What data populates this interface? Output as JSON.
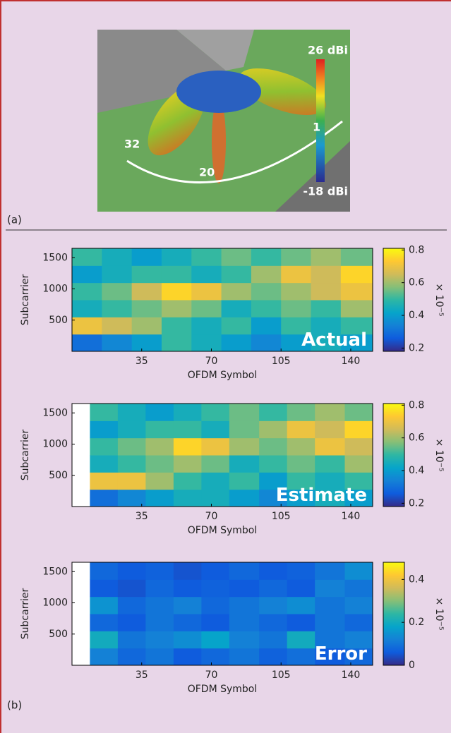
{
  "panel_a": {
    "label": "(a)",
    "scale_max": "26 dBi",
    "scale_min": "-18 dBi",
    "beam_first": "1",
    "beam_mid": "20",
    "beam_last": "32"
  },
  "panel_b": {
    "label": "(b)"
  },
  "chart_data": [
    {
      "type": "heatmap",
      "overlay": "Actual",
      "xlabel": "OFDM Symbol",
      "ylabel": "Subcarrier",
      "color_exponent": "× 10⁻⁵",
      "xlim": [
        0,
        151
      ],
      "ylim": [
        0,
        1650
      ],
      "xticks": [
        35,
        70,
        105,
        140
      ],
      "yticks": [
        500,
        1000,
        1500
      ],
      "clim": [
        0.18,
        0.81
      ],
      "cticks": [
        0.2,
        0.4,
        0.6,
        0.8
      ],
      "colormap": [
        "#352a87",
        "#0f5cdd",
        "#1481d6",
        "#06a4ca",
        "#2eb7a4",
        "#87bf77",
        "#d1bb59",
        "#fec832",
        "#f9fb0e"
      ],
      "xbins": [
        0,
        15,
        30,
        45,
        60,
        75,
        90,
        105,
        120,
        135,
        151
      ],
      "ybins": [
        0,
        275,
        550,
        825,
        1100,
        1375,
        1650
      ],
      "z": [
        [
          0.3,
          0.35,
          0.4,
          0.5,
          0.45,
          0.4,
          0.35,
          0.4,
          0.45,
          0.4
        ],
        [
          0.7,
          0.65,
          0.6,
          0.5,
          0.45,
          0.5,
          0.4,
          0.5,
          0.45,
          0.5
        ],
        [
          0.45,
          0.5,
          0.55,
          0.6,
          0.55,
          0.45,
          0.5,
          0.55,
          0.5,
          0.6
        ],
        [
          0.5,
          0.55,
          0.65,
          0.75,
          0.7,
          0.6,
          0.55,
          0.6,
          0.65,
          0.7
        ],
        [
          0.4,
          0.45,
          0.5,
          0.5,
          0.45,
          0.5,
          0.6,
          0.7,
          0.65,
          0.75
        ],
        [
          0.5,
          0.45,
          0.4,
          0.45,
          0.5,
          0.55,
          0.5,
          0.55,
          0.6,
          0.55
        ]
      ]
    },
    {
      "type": "heatmap",
      "overlay": "Estimate",
      "xlabel": "OFDM Symbol",
      "ylabel": "Subcarrier",
      "color_exponent": "× 10⁻⁵",
      "xlim": [
        0,
        151
      ],
      "ylim": [
        0,
        1650
      ],
      "xticks": [
        35,
        70,
        105,
        140
      ],
      "yticks": [
        500,
        1000,
        1500
      ],
      "clim": [
        0.18,
        0.81
      ],
      "cticks": [
        0.2,
        0.4,
        0.6,
        0.8
      ],
      "colormap": [
        "#352a87",
        "#0f5cdd",
        "#1481d6",
        "#06a4ca",
        "#2eb7a4",
        "#87bf77",
        "#d1bb59",
        "#fec832",
        "#f9fb0e"
      ],
      "xbins": [
        9,
        23,
        37,
        51,
        65,
        79,
        94,
        108,
        122,
        137,
        151
      ],
      "ybins": [
        0,
        275,
        550,
        825,
        1100,
        1375,
        1650
      ],
      "z": [
        [
          0.3,
          0.35,
          0.4,
          0.45,
          0.45,
          0.4,
          0.35,
          0.4,
          0.45,
          0.4
        ],
        [
          0.7,
          0.7,
          0.6,
          0.5,
          0.45,
          0.5,
          0.4,
          0.5,
          0.45,
          0.5
        ],
        [
          0.45,
          0.5,
          0.55,
          0.6,
          0.55,
          0.45,
          0.5,
          0.55,
          0.5,
          0.6
        ],
        [
          0.5,
          0.55,
          0.6,
          0.75,
          0.7,
          0.6,
          0.55,
          0.6,
          0.7,
          0.65
        ],
        [
          0.4,
          0.45,
          0.5,
          0.5,
          0.45,
          0.55,
          0.6,
          0.7,
          0.65,
          0.75
        ],
        [
          0.5,
          0.45,
          0.4,
          0.45,
          0.5,
          0.55,
          0.5,
          0.55,
          0.6,
          0.55
        ]
      ]
    },
    {
      "type": "heatmap",
      "overlay": "Error",
      "xlabel": "OFDM Symbol",
      "ylabel": "Subcarrier",
      "color_exponent": "× 10⁻⁵",
      "xlim": [
        0,
        151
      ],
      "ylim": [
        0,
        1650
      ],
      "xticks": [
        35,
        70,
        105,
        140
      ],
      "yticks": [
        500,
        1000,
        1500
      ],
      "clim": [
        0,
        0.48
      ],
      "cticks": [
        0,
        0.2,
        0.4
      ],
      "colormap": [
        "#352a87",
        "#0f5cdd",
        "#1481d6",
        "#06a4ca",
        "#2eb7a4",
        "#87bf77",
        "#d1bb59",
        "#fec832",
        "#f9fb0e"
      ],
      "xbins": [
        9,
        23,
        37,
        51,
        65,
        79,
        94,
        108,
        122,
        137,
        151
      ],
      "ybins": [
        0,
        275,
        550,
        825,
        1100,
        1375,
        1650
      ],
      "z": [
        [
          0.12,
          0.08,
          0.1,
          0.06,
          0.08,
          0.1,
          0.07,
          0.09,
          0.06,
          0.08
        ],
        [
          0.2,
          0.1,
          0.12,
          0.14,
          0.18,
          0.12,
          0.1,
          0.2,
          0.1,
          0.12
        ],
        [
          0.08,
          0.06,
          0.1,
          0.08,
          0.06,
          0.1,
          0.08,
          0.06,
          0.1,
          0.08
        ],
        [
          0.15,
          0.08,
          0.1,
          0.12,
          0.08,
          0.1,
          0.12,
          0.14,
          0.1,
          0.12
        ],
        [
          0.06,
          0.05,
          0.08,
          0.06,
          0.07,
          0.06,
          0.08,
          0.06,
          0.12,
          0.1
        ],
        [
          0.08,
          0.06,
          0.07,
          0.05,
          0.06,
          0.08,
          0.06,
          0.07,
          0.1,
          0.14
        ]
      ]
    }
  ]
}
